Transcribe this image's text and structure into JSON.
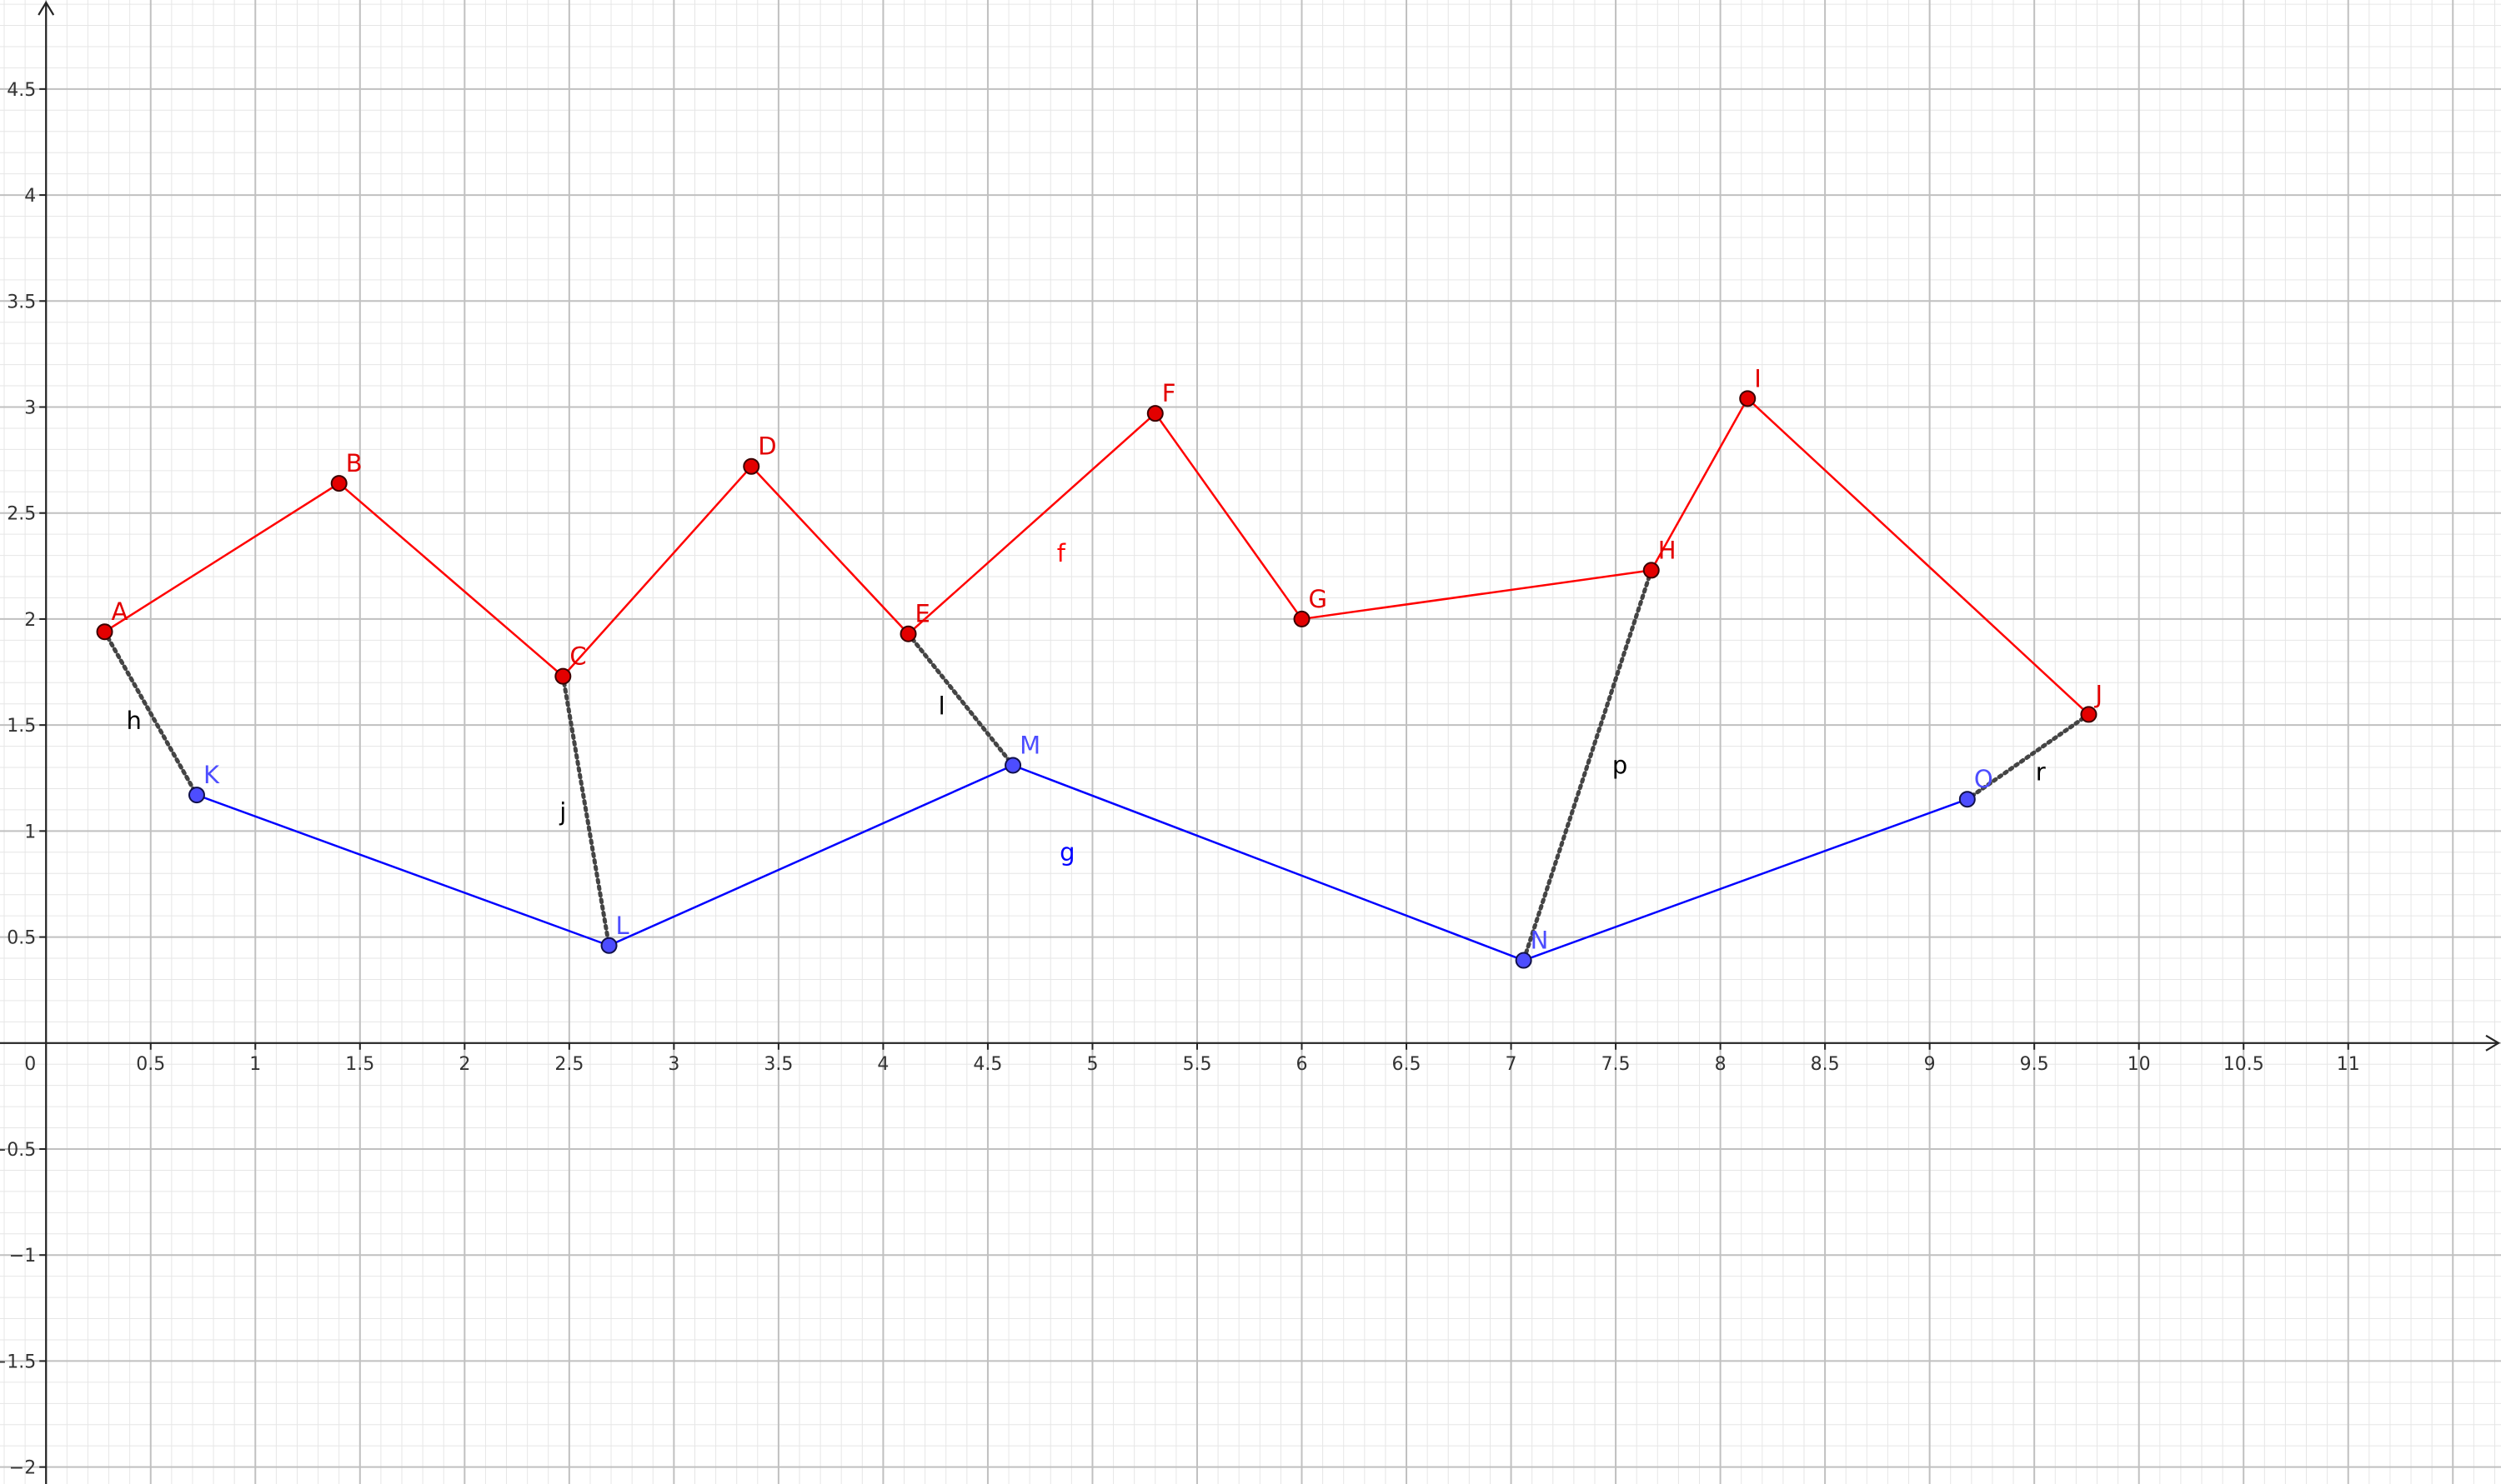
{
  "axes": {
    "x_range": [
      -0.22,
      11.73
    ],
    "y_range": [
      -2.08,
      4.92
    ],
    "x_ticks": [
      "0.5",
      "1",
      "1.5",
      "2",
      "2.5",
      "3",
      "3.5",
      "4",
      "4.5",
      "5",
      "5.5",
      "6",
      "6.5",
      "7",
      "7.5",
      "8",
      "8.5",
      "9",
      "9.5",
      "10",
      "10.5",
      "11"
    ],
    "y_ticks": [
      "4.5",
      "4",
      "3.5",
      "3",
      "2.5",
      "2",
      "1.5",
      "1",
      "0.5",
      "−0.5",
      "−1",
      "−1.5",
      "−2"
    ],
    "origin_label": "0",
    "major_grid_step": 0.5,
    "minor_grid_step": 0.1,
    "grid": true
  },
  "colors": {
    "red": "#ff0000",
    "red_point": "#e30000",
    "blue": "#0000ff",
    "blue_point": "#4d4dff",
    "blue_label": "#4d4dff",
    "connector": "#444444",
    "major_grid": "#c0c0c0",
    "minor_grid": "#e6e6e6",
    "axis": "#252525"
  },
  "red_points": [
    {
      "name": "A",
      "x": 0.28,
      "y": 1.94
    },
    {
      "name": "B",
      "x": 1.4,
      "y": 2.64
    },
    {
      "name": "C",
      "x": 2.47,
      "y": 1.73
    },
    {
      "name": "D",
      "x": 3.37,
      "y": 2.72
    },
    {
      "name": "E",
      "x": 4.12,
      "y": 1.93
    },
    {
      "name": "F",
      "x": 5.3,
      "y": 2.97
    },
    {
      "name": "G",
      "x": 6.0,
      "y": 2.0
    },
    {
      "name": "H",
      "x": 7.67,
      "y": 2.23
    },
    {
      "name": "I",
      "x": 8.13,
      "y": 3.04
    },
    {
      "name": "J",
      "x": 9.76,
      "y": 1.55
    }
  ],
  "blue_points": [
    {
      "name": "K",
      "x": 0.72,
      "y": 1.17
    },
    {
      "name": "L",
      "x": 2.69,
      "y": 0.46
    },
    {
      "name": "M",
      "x": 4.62,
      "y": 1.31
    },
    {
      "name": "N",
      "x": 7.06,
      "y": 0.39
    },
    {
      "name": "O",
      "x": 9.18,
      "y": 1.15
    }
  ],
  "red_polyline_label": {
    "text": "f",
    "x": 4.85,
    "y": 2.27
  },
  "blue_polyline_label": {
    "text": "g",
    "x": 4.88,
    "y": 0.86
  },
  "connectors": [
    {
      "name": "h",
      "from": "A",
      "to": "K",
      "label_x": 0.42,
      "label_y": 1.48
    },
    {
      "name": "j",
      "from": "C",
      "to": "L",
      "label_x": 2.47,
      "label_y": 1.05
    },
    {
      "name": "l",
      "from": "E",
      "to": "M",
      "label_x": 4.28,
      "label_y": 1.55
    },
    {
      "name": "p",
      "from": "H",
      "to": "N",
      "label_x": 7.52,
      "label_y": 1.27
    },
    {
      "name": "r",
      "from": "J",
      "to": "O",
      "label_x": 9.53,
      "label_y": 1.24
    }
  ]
}
